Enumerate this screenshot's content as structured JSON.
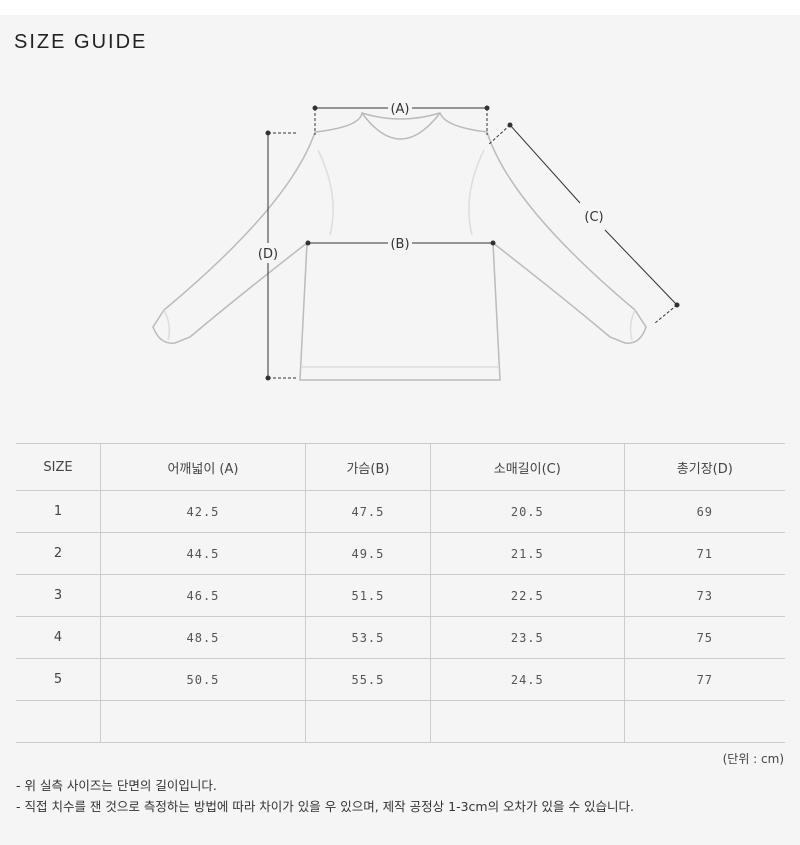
{
  "title": "SIZE GUIDE",
  "diagram": {
    "labels": {
      "a": "(A)",
      "b": "(B)",
      "c": "(C)",
      "d": "(D)"
    }
  },
  "table": {
    "headers": [
      "SIZE",
      "어깨넓이 (A)",
      "가슴(B)",
      "소매길이(C)",
      "총기장(D)"
    ],
    "rows": [
      [
        "1",
        "42.5",
        "47.5",
        "20.5",
        "69"
      ],
      [
        "2",
        "44.5",
        "49.5",
        "21.5",
        "71"
      ],
      [
        "3",
        "46.5",
        "51.5",
        "22.5",
        "73"
      ],
      [
        "4",
        "48.5",
        "53.5",
        "23.5",
        "75"
      ],
      [
        "5",
        "50.5",
        "55.5",
        "24.5",
        "77"
      ],
      [
        "",
        "",
        "",
        "",
        ""
      ]
    ]
  },
  "unit": "(단위 : cm)",
  "notes": [
    "- 위 실측 사이즈는 단면의 길이입니다.",
    "- 직접 치수를 잰 것으로 측정하는 방법에 따라 차이가 있을 우 있으며, 제작 공정상 1-3cm의 오차가 있을 수 있습니다."
  ]
}
